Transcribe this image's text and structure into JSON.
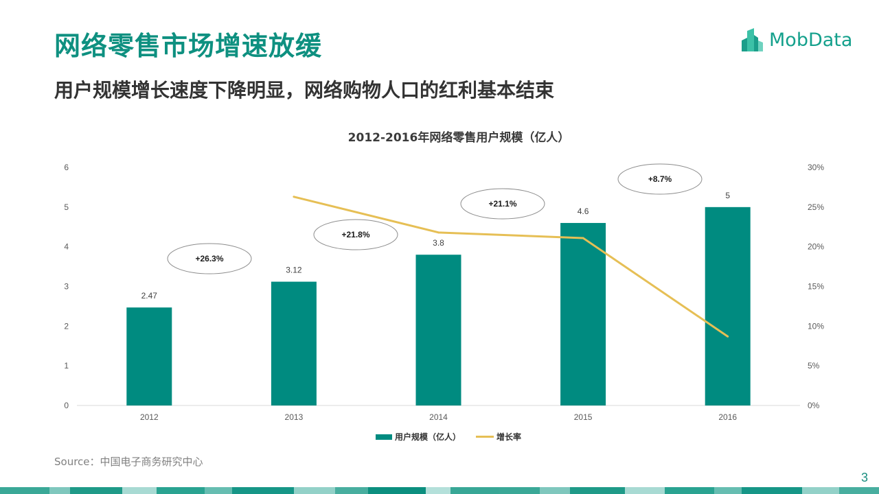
{
  "page": {
    "title": "网络零售市场增速放缓",
    "subtitle": "用户规模增长速度下降明显，网络购物人口的红利基本结束",
    "logo_text": "MobData",
    "source": "Source：中国电子商务研究中心",
    "page_number": "3"
  },
  "colors": {
    "title": "#0e9080",
    "bar": "#008b80",
    "line": "#e6bf55",
    "logo": "#14a08c",
    "footer": [
      "#3aa897",
      "#7fc7bd",
      "#1f9a88",
      "#a8dad3",
      "#2aa391",
      "#66bdb1",
      "#169687",
      "#93d1c8",
      "#48ae9f",
      "#0c8f7f",
      "#b4e0da",
      "#38a796"
    ]
  },
  "chart_data": {
    "type": "bar",
    "title": "2012-2016年网络零售用户规模（亿人）",
    "categories": [
      "2012",
      "2013",
      "2014",
      "2015",
      "2016"
    ],
    "series": [
      {
        "name": "用户规模（亿人）",
        "type": "bar",
        "axis": "left",
        "values": [
          2.47,
          3.12,
          3.8,
          4.6,
          5
        ]
      },
      {
        "name": "增长率",
        "type": "line",
        "axis": "right",
        "values": [
          null,
          26.3,
          21.8,
          21.1,
          8.7
        ]
      }
    ],
    "bar_labels": [
      "2.47",
      "3.12",
      "3.8",
      "4.6",
      "5"
    ],
    "left_axis": {
      "ylim": [
        0,
        6
      ],
      "ticks": [
        "0",
        "1",
        "2",
        "3",
        "4",
        "5",
        "6"
      ]
    },
    "right_axis": {
      "ylim": [
        0,
        30
      ],
      "ticks": [
        "0%",
        "5%",
        "10%",
        "15%",
        "20%",
        "25%",
        "30%"
      ]
    },
    "callouts": [
      "+26.3%",
      "+21.8%",
      "+21.1%",
      "+8.7%"
    ],
    "legend_position": "bottom",
    "grid": false
  }
}
